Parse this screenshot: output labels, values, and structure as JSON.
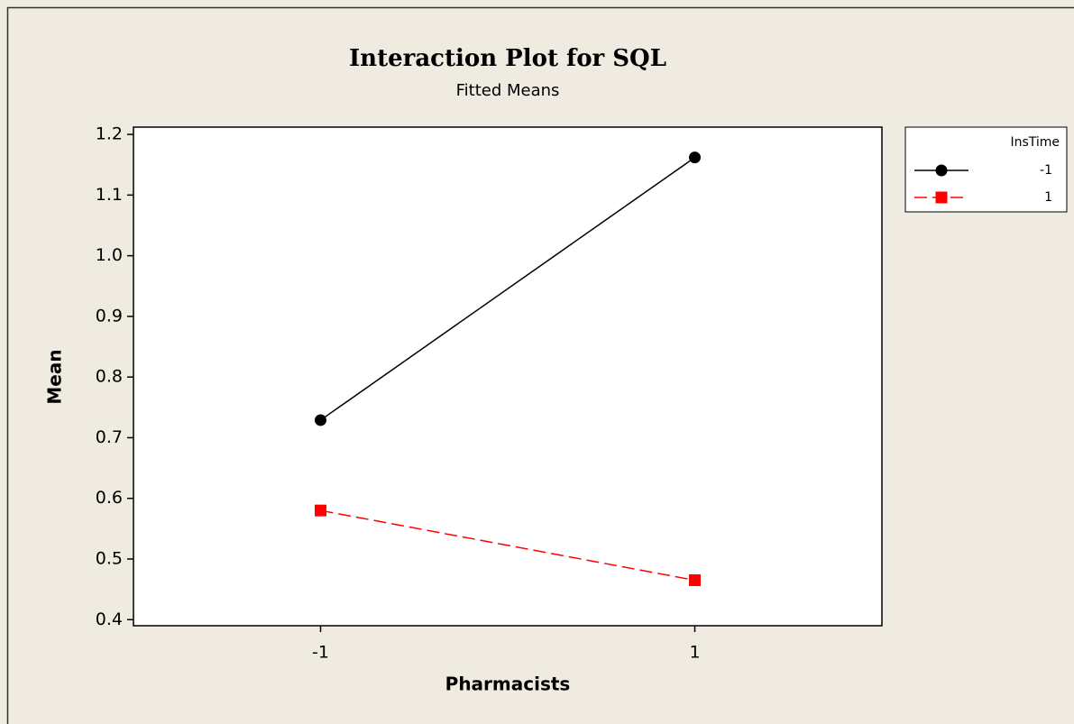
{
  "chart_data": {
    "type": "line",
    "title": "Interaction Plot for SQL",
    "subtitle": "Fitted Means",
    "x_label": "Pharmacists",
    "y_label": "Mean",
    "categories": [
      "-1",
      "1"
    ],
    "legend_title": "InsTime",
    "legend": "outside-right",
    "series": [
      {
        "name": "-1",
        "color": "#000000",
        "marker": "circle",
        "linestyle": "solid",
        "values": [
          0.729,
          1.162
        ]
      },
      {
        "name": "1",
        "color": "#ff0000",
        "marker": "square",
        "linestyle": "dashed",
        "values": [
          0.58,
          0.465
        ]
      }
    ],
    "ylim": [
      0.39,
      1.212
    ],
    "yticks": [
      0.4,
      0.5,
      0.6,
      0.7,
      0.8,
      0.9,
      {
        "value": 1,
        "label": "1.0"
      },
      1.1,
      1.2
    ],
    "grid": false
  }
}
